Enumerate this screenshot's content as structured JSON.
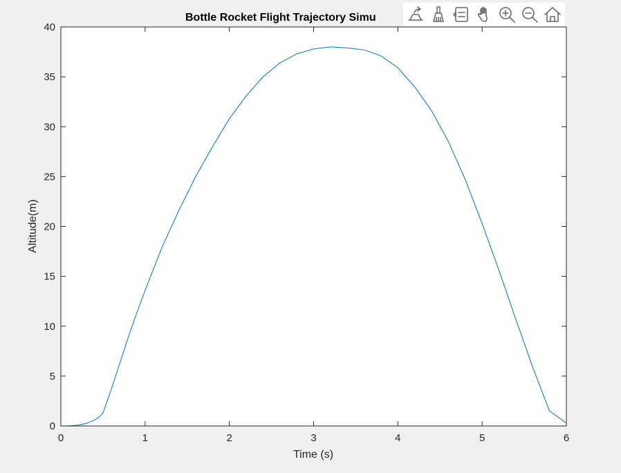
{
  "chart_data": {
    "type": "line",
    "title": "Bottle Rocket Flight Trajectory Simu",
    "xlabel": "Time (s)",
    "ylabel": "Altitude(m)",
    "xlim": [
      0,
      6
    ],
    "ylim": [
      0,
      40
    ],
    "xticks": [
      0,
      1,
      2,
      3,
      4,
      5,
      6
    ],
    "yticks": [
      0,
      5,
      10,
      15,
      20,
      25,
      30,
      35,
      40
    ],
    "grid": false,
    "series": [
      {
        "color": "#0072BD",
        "x": [
          0,
          0.1,
          0.2,
          0.3,
          0.4,
          0.45,
          0.5,
          0.6,
          0.7,
          0.8,
          0.9,
          1.0,
          1.2,
          1.4,
          1.6,
          1.8,
          2.0,
          2.2,
          2.4,
          2.6,
          2.8,
          3.0,
          3.2,
          3.4,
          3.6,
          3.8,
          4.0,
          4.2,
          4.4,
          4.6,
          4.8,
          5.0,
          5.2,
          5.4,
          5.6,
          5.8,
          6.0
        ],
        "y": [
          0,
          0.02,
          0.08,
          0.25,
          0.6,
          0.85,
          1.3,
          3.7,
          6.3,
          8.9,
          11.3,
          13.6,
          17.9,
          21.6,
          25.0,
          28.0,
          30.8,
          33.1,
          35.0,
          36.4,
          37.3,
          37.8,
          38.0,
          37.9,
          37.7,
          37.1,
          35.9,
          34.0,
          31.6,
          28.5,
          24.7,
          20.3,
          15.6,
          10.7,
          5.9,
          1.5,
          0.3
        ]
      }
    ]
  },
  "toolbar": {
    "buttons": [
      {
        "name": "export-icon"
      },
      {
        "name": "brush-icon"
      },
      {
        "name": "datatip-icon"
      },
      {
        "name": "pan-icon"
      },
      {
        "name": "zoom-in-icon"
      },
      {
        "name": "zoom-out-icon"
      },
      {
        "name": "home-icon"
      }
    ]
  }
}
